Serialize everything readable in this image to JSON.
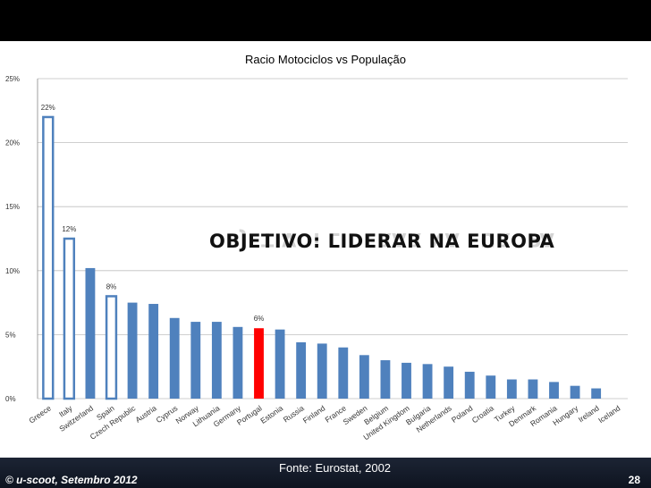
{
  "slide": {
    "overlay_text": "OBJETIVO: LIDERAR NA EUROPA",
    "source": "Fonte: Eurostat, 2002",
    "footer_left": "© u-scoot, Setembro 2012",
    "page_number": "28"
  },
  "chart_data": {
    "type": "bar",
    "title": "Racio Motociclos vs População",
    "ylim": [
      0,
      25
    ],
    "yticks": [
      "0%",
      "5%",
      "10%",
      "15%",
      "20%",
      "25%"
    ],
    "grid": true,
    "categories": [
      "Greece",
      "Italy",
      "Switzerland",
      "Spain",
      "Czech Republic",
      "Austria",
      "Cyprus",
      "Norway",
      "Lithuania",
      "Germany",
      "Portugal",
      "Estonia",
      "Russia",
      "Finland",
      "France",
      "Sweden",
      "Belgium",
      "United Kingdom",
      "Bulgaria",
      "Netherlands",
      "Poland",
      "Croatia",
      "Turkey",
      "Denmark",
      "Romania",
      "Hungary",
      "Ireland",
      "Iceland"
    ],
    "values": [
      22,
      12.5,
      10.2,
      8,
      7.5,
      7.4,
      6.3,
      6.0,
      6.0,
      5.6,
      5.5,
      5.4,
      4.4,
      4.3,
      4.0,
      3.4,
      3.0,
      2.8,
      2.7,
      2.5,
      2.1,
      1.8,
      1.5,
      1.5,
      1.3,
      1.0,
      0.8,
      0
    ],
    "data_labels": {
      "0": "22%",
      "1": "12%",
      "3": "8%",
      "10": "6%"
    },
    "highlighted": [
      0,
      1,
      3
    ],
    "emphasis": 10,
    "colors": {
      "bar": "#4f81bd",
      "highlight_fill": "#ffffff",
      "highlight_stroke": "#4f81bd",
      "emphasis": "#ff0000",
      "grid": "#bfbfbf"
    }
  }
}
